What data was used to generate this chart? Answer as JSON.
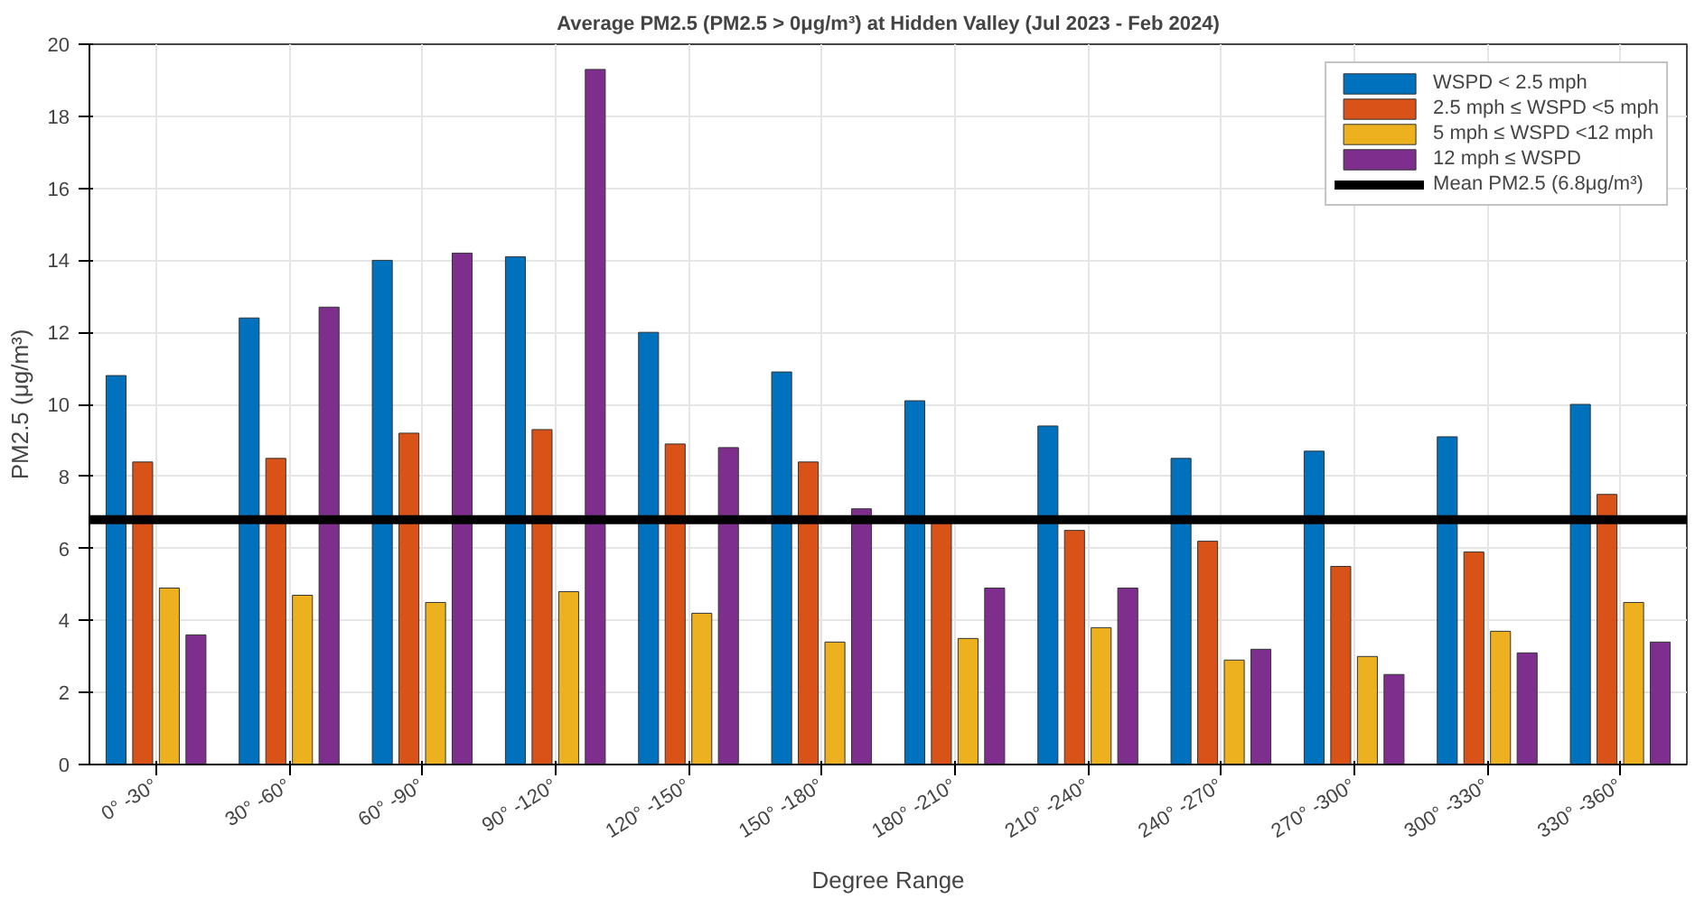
{
  "chart_data": {
    "type": "bar",
    "title": "Average PM2.5 (PM2.5 > 0μg/m³) at Hidden Valley (Jul 2023 - Feb 2024)",
    "xlabel": "Degree Range",
    "ylabel": "PM2.5 (μg/m³)",
    "categories": [
      "0° -30°",
      "30° -60°",
      "60° -90°",
      "90° -120°",
      "120° -150°",
      "150° -180°",
      "180° -210°",
      "210° -240°",
      "240° -270°",
      "270° -300°",
      "300° -330°",
      "330° -360°"
    ],
    "series": [
      {
        "name": "WSPD < 2.5 mph",
        "color": "#0072bd",
        "values": [
          10.8,
          12.4,
          14.0,
          14.1,
          12.0,
          10.9,
          10.1,
          9.4,
          8.5,
          8.7,
          9.1,
          10.0
        ]
      },
      {
        "name": "2.5 mph ≤ WSPD <5 mph",
        "color": "#d95319",
        "values": [
          8.4,
          8.5,
          9.2,
          9.3,
          8.9,
          8.4,
          6.8,
          6.5,
          6.2,
          5.5,
          5.9,
          7.5
        ]
      },
      {
        "name": "5 mph ≤ WSPD <12 mph",
        "color": "#edb120",
        "values": [
          4.9,
          4.7,
          4.5,
          4.8,
          4.2,
          3.4,
          3.5,
          3.8,
          2.9,
          3.0,
          3.7,
          4.5
        ]
      },
      {
        "name": "12 mph ≤ WSPD",
        "color": "#7e2f8e",
        "values": [
          3.6,
          12.7,
          14.2,
          19.3,
          8.8,
          7.1,
          4.9,
          4.9,
          3.2,
          2.5,
          3.1,
          3.4
        ]
      }
    ],
    "ylim": [
      0,
      20
    ],
    "yticks": [
      0,
      2,
      4,
      6,
      8,
      10,
      12,
      14,
      16,
      18,
      20
    ],
    "ref_lines": [
      {
        "axis": "y",
        "value": 6.8,
        "label": "Mean PM2.5 (6.8μg/m³)",
        "color": "#000000"
      }
    ],
    "grid": true,
    "legend": "top right"
  }
}
